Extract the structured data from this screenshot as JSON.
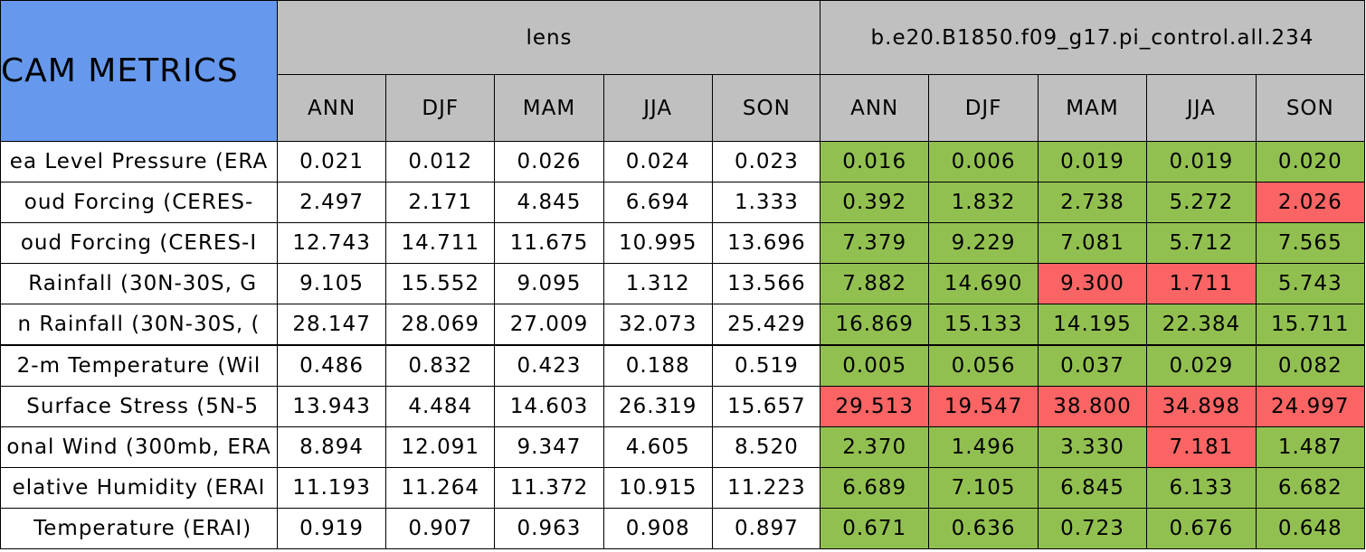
{
  "header": {
    "title": "CAM METRICS",
    "groups": [
      "lens",
      "b.e20.B1850.f09_g17.pi_control.all.234"
    ],
    "seasons": [
      "ANN",
      "DJF",
      "MAM",
      "JJA",
      "SON"
    ]
  },
  "rows": [
    {
      "label": "ea Level Pressure (ERA",
      "lens": [
        "0.021",
        "0.012",
        "0.026",
        "0.024",
        "0.023"
      ],
      "control": [
        "0.016",
        "0.006",
        "0.019",
        "0.019",
        "0.020"
      ],
      "control_colors": [
        "#92c050",
        "#92c050",
        "#92c050",
        "#92c050",
        "#92c050"
      ]
    },
    {
      "label": "oud Forcing (CERES-",
      "lens": [
        "2.497",
        "2.171",
        "4.845",
        "6.694",
        "1.333"
      ],
      "control": [
        "0.392",
        "1.832",
        "2.738",
        "5.272",
        "2.026"
      ],
      "control_colors": [
        "#92c050",
        "#92c050",
        "#92c050",
        "#92c050",
        "#fa6464"
      ]
    },
    {
      "label": "oud Forcing (CERES-I",
      "lens": [
        "12.743",
        "14.711",
        "11.675",
        "10.995",
        "13.696"
      ],
      "control": [
        "7.379",
        "9.229",
        "7.081",
        "5.712",
        "7.565"
      ],
      "control_colors": [
        "#92c050",
        "#92c050",
        "#92c050",
        "#92c050",
        "#92c050"
      ]
    },
    {
      "label": " Rainfall (30N-30S, G",
      "lens": [
        "9.105",
        "15.552",
        "9.095",
        "1.312",
        "13.566"
      ],
      "control": [
        "7.882",
        "14.690",
        "9.300",
        "1.711",
        "5.743"
      ],
      "control_colors": [
        "#92c050",
        "#92c050",
        "#fa6464",
        "#fa6464",
        "#92c050"
      ]
    },
    {
      "label": "n Rainfall (30N-30S, (",
      "lens": [
        "28.147",
        "28.069",
        "27.009",
        "32.073",
        "25.429"
      ],
      "control": [
        "16.869",
        "15.133",
        "14.195",
        "22.384",
        "15.711"
      ],
      "control_colors": [
        "#92c050",
        "#92c050",
        "#92c050",
        "#92c050",
        "#92c050"
      ]
    },
    {
      "label": "2-m Temperature (Wil",
      "lens": [
        "0.486",
        "0.832",
        "0.423",
        "0.188",
        "0.519"
      ],
      "control": [
        "0.005",
        "0.056",
        "0.037",
        "0.029",
        "0.082"
      ],
      "control_colors": [
        "#92c050",
        "#92c050",
        "#92c050",
        "#92c050",
        "#92c050"
      ]
    },
    {
      "label": " Surface Stress (5N-5",
      "lens": [
        "13.943",
        "4.484",
        "14.603",
        "26.319",
        "15.657"
      ],
      "control": [
        "29.513",
        "19.547",
        "38.800",
        "34.898",
        "24.997"
      ],
      "control_colors": [
        "#fa6464",
        "#fa6464",
        "#fa6464",
        "#fa6464",
        "#fa6464"
      ]
    },
    {
      "label": "onal Wind (300mb, ERA",
      "lens": [
        "8.894",
        "12.091",
        "9.347",
        "4.605",
        "8.520"
      ],
      "control": [
        "2.370",
        "1.496",
        "3.330",
        "7.181",
        "1.487"
      ],
      "control_colors": [
        "#92c050",
        "#92c050",
        "#92c050",
        "#fa6464",
        "#92c050"
      ]
    },
    {
      "label": "elative Humidity (ERAI",
      "lens": [
        "11.193",
        "11.264",
        "11.372",
        "10.915",
        "11.223"
      ],
      "control": [
        "6.689",
        "7.105",
        "6.845",
        "6.133",
        "6.682"
      ],
      "control_colors": [
        "#92c050",
        "#92c050",
        "#92c050",
        "#92c050",
        "#92c050"
      ]
    },
    {
      "label": " Temperature (ERAI)",
      "lens": [
        "0.919",
        "0.907",
        "0.963",
        "0.908",
        "0.897"
      ],
      "control": [
        "0.671",
        "0.636",
        "0.723",
        "0.676",
        "0.648"
      ],
      "control_colors": [
        "#92c050",
        "#92c050",
        "#92c050",
        "#92c050",
        "#92c050"
      ]
    }
  ]
}
